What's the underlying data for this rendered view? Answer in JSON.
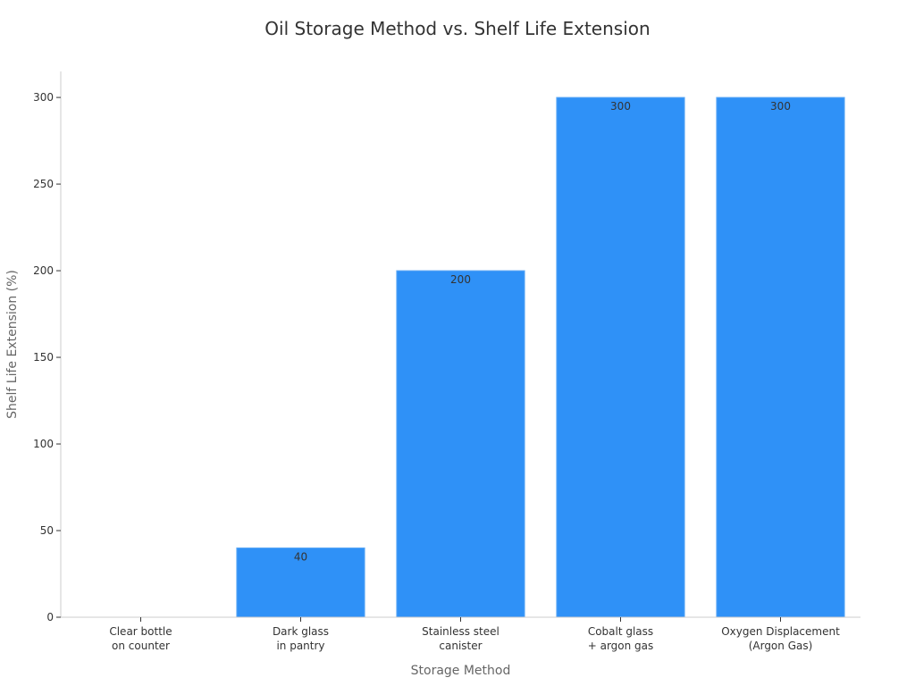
{
  "chart_data": {
    "type": "bar",
    "title": "Oil Storage Method vs. Shelf Life Extension",
    "xlabel": "Storage Method",
    "ylabel": "Shelf Life Extension (%)",
    "categories": [
      [
        "Clear bottle",
        "on counter"
      ],
      [
        "Dark glass",
        "in pantry"
      ],
      [
        "Stainless steel",
        "canister"
      ],
      [
        "Cobalt glass",
        "+ argon gas"
      ],
      [
        "Oxygen Displacement",
        "(Argon Gas)"
      ]
    ],
    "values": [
      0,
      40,
      200,
      300,
      300
    ],
    "data_labels": [
      "",
      "40",
      "200",
      "300",
      "300"
    ],
    "ylim": [
      0,
      315
    ],
    "yticks": [
      0,
      50,
      100,
      150,
      200,
      250,
      300
    ],
    "grid": false,
    "colors": {
      "bar": "#2f91f7",
      "bar_edge": "#5ea9f5",
      "axis": "#cccccc"
    }
  }
}
